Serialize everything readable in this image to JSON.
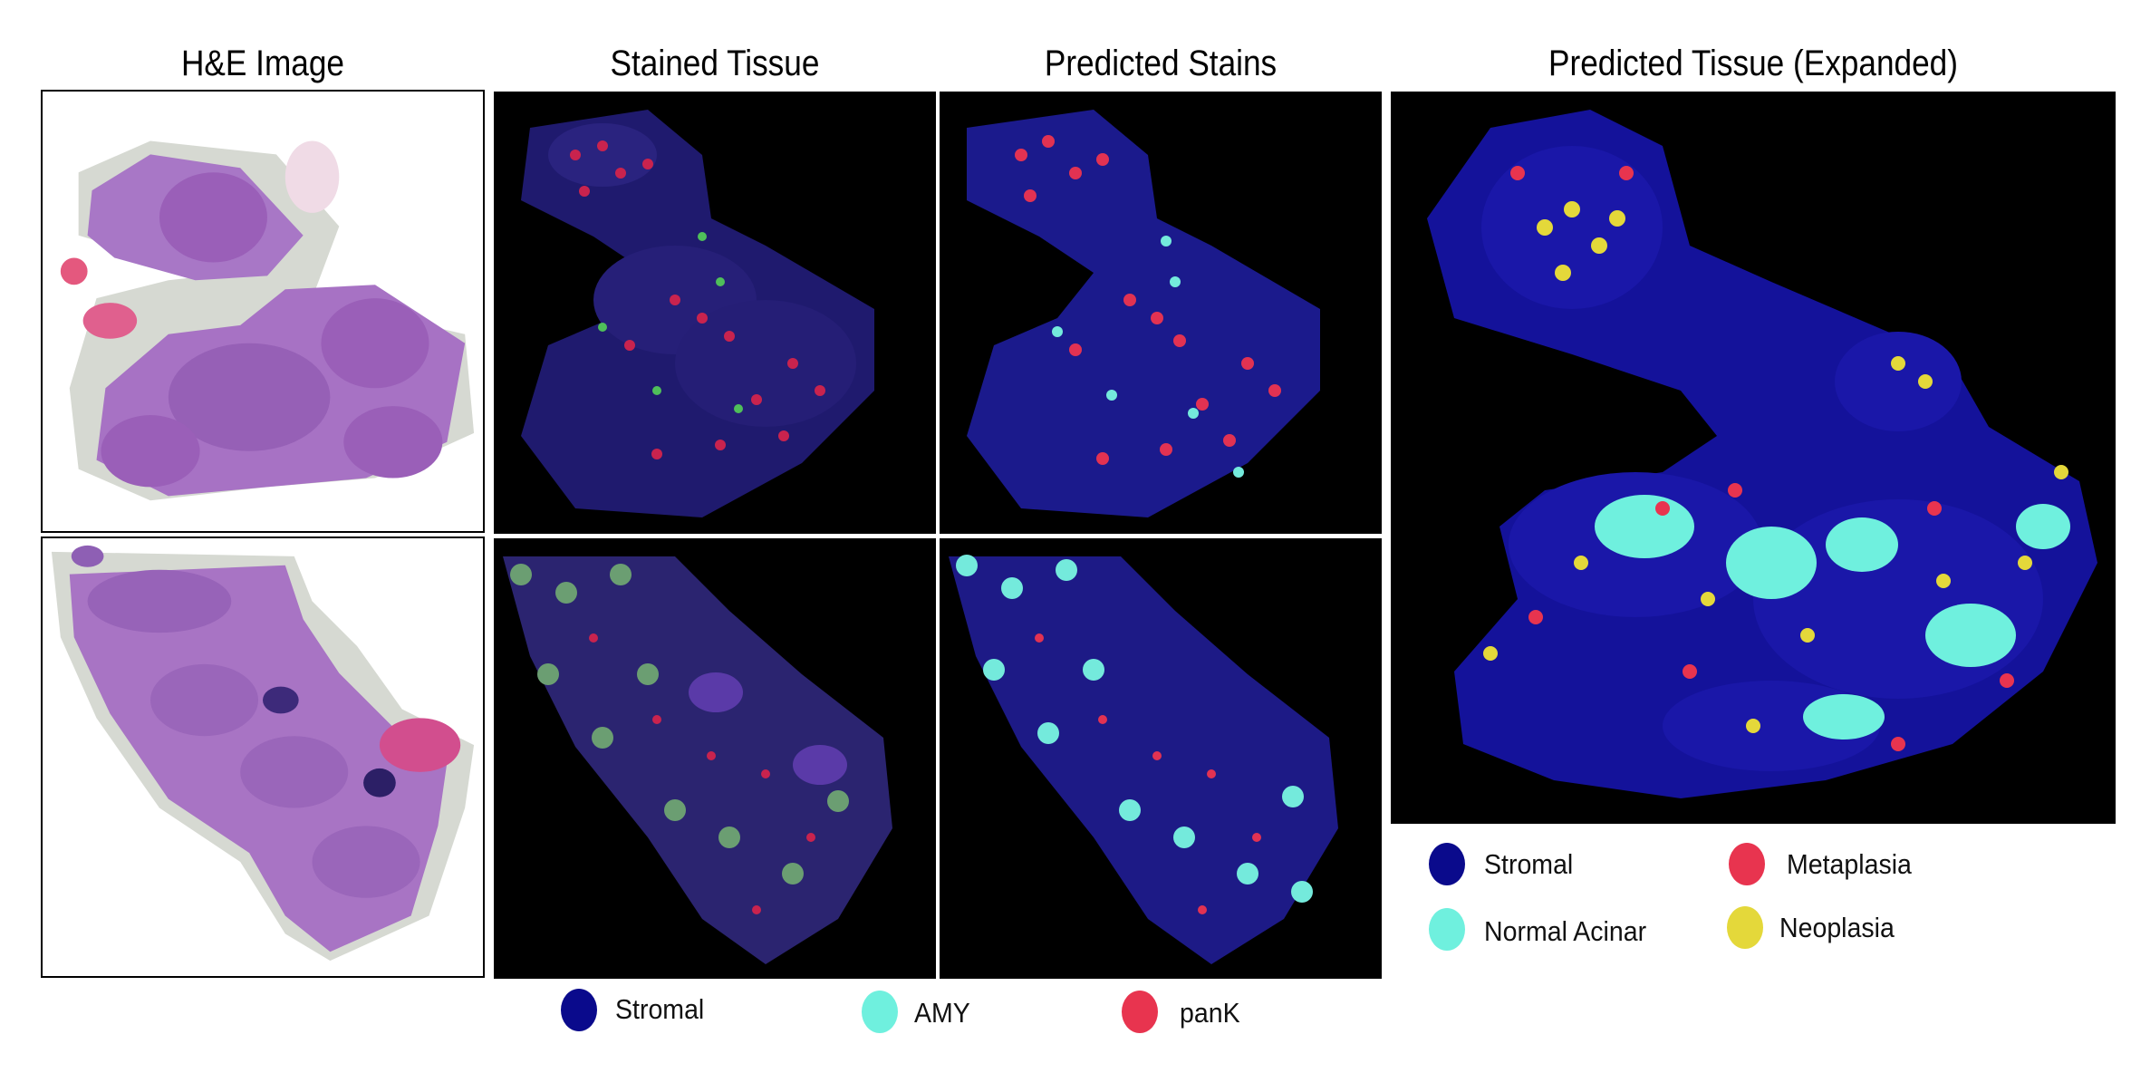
{
  "columns": {
    "he": "H&E Image",
    "stained": "Stained Tissue",
    "predicted_stains": "Predicted Stains",
    "predicted_tissue": "Predicted Tissue (Expanded)"
  },
  "stain_legend": [
    {
      "label": "Stromal",
      "color": "#0a0a8c"
    },
    {
      "label": "AMY",
      "color": "#6ff0de"
    },
    {
      "label": "panK",
      "color": "#e8344f"
    }
  ],
  "tissue_legend": [
    {
      "label": "Stromal",
      "color": "#0a0a8c"
    },
    {
      "label": "Metaplasia",
      "color": "#e8344f"
    },
    {
      "label": "Normal Acinar",
      "color": "#6ff0de"
    },
    {
      "label": "Neoplasia",
      "color": "#e4d83a"
    }
  ]
}
